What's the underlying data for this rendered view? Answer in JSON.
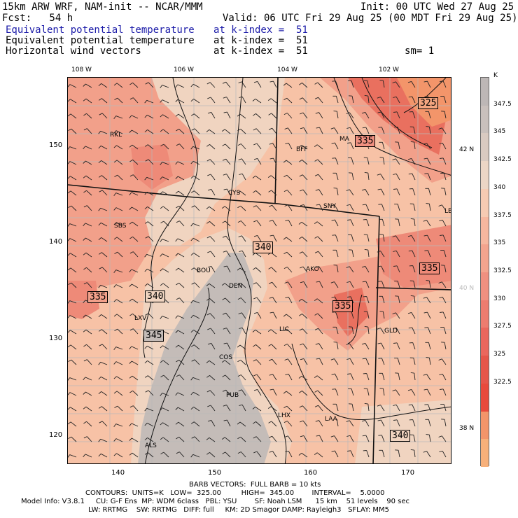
{
  "header": {
    "line1_left": "15km ARW WRF, NAM-init -- NCAR/MMM",
    "line1_right": "Init: 00 UTC Wed 27 Aug 25",
    "line2_left": "Fcst:   54 h",
    "line2_right": "Valid: 06 UTC Fri 29 Aug 25 (00 MDT Fri 29 Aug 25)",
    "fields": [
      {
        "name": "Equivalent potential temperature",
        "level": "at k-index =  51",
        "color": "#1a1aa8"
      },
      {
        "name": "Equivalent potential temperature",
        "level": "at k-index =  51",
        "color": "#000000"
      },
      {
        "name": "Horizontal wind vectors",
        "level": "at k-index =  51",
        "color": "#000000"
      }
    ],
    "smoothing": "sm= 1"
  },
  "map": {
    "top_lon_labels": [
      "108 W",
      "106 W",
      "104 W",
      "102 W"
    ],
    "right_lat_labels": [
      "42 N",
      "40 N",
      "38 N"
    ],
    "x_ticks": [
      "140",
      "150",
      "160",
      "170"
    ],
    "y_ticks": [
      "150",
      "140",
      "130",
      "120"
    ],
    "stations": [
      "RKL",
      "BFF",
      "MA",
      "CYS",
      "SNY",
      "LBE",
      "SBS",
      "BOU",
      "AKO",
      "DEN",
      "LXV",
      "LIC",
      "GLD",
      "COS",
      "PUB",
      "LHX",
      "LAA",
      "ALS"
    ],
    "contour_labels": [
      "325",
      "335",
      "340",
      "335",
      "340",
      "335",
      "335",
      "345",
      "340"
    ],
    "colors": {
      "gray": "#c4bcb8",
      "tan_light": "#f0d4c0",
      "peach": "#f7c2a6",
      "salmon": "#f2a08a",
      "red_light": "#ee8a78",
      "red": "#e9705f",
      "red_deep": "#e24c40"
    }
  },
  "colorbar": {
    "unit": "K",
    "labels": [
      "347.5",
      "345",
      "342.5",
      "340",
      "337.5",
      "335",
      "332.5",
      "330",
      "327.5",
      "325",
      "322.5"
    ],
    "colors": [
      "#bdb7b6",
      "#c9c0bc",
      "#d9cac1",
      "#ecd6c6",
      "#f6cbb3",
      "#f6b79f",
      "#f3a48e",
      "#f09080",
      "#ed7c6f",
      "#ea675d",
      "#e5564a",
      "#e84a3c",
      "#f3956a",
      "#f7b07a"
    ]
  },
  "footer": {
    "barb": "BARB VECTORS:  FULL BARB = 10 kts",
    "contours": "CONTOURS:  UNITS=K   LOW=  325.00         HIGH=  345.00        INTERVAL=    5.0000",
    "model1": "Model Info: V3.8.1     CU: G-F Ens  MP: WDM 6class   PBL: YSU        SF: Noah LSM      15 km    51 levels    90 sec",
    "model2": "LW: RRTMG    SW: RRTMG   DIFF: full     KM: 2D Smagor DAMP: Rayleigh3   SFLAY: MM5"
  }
}
